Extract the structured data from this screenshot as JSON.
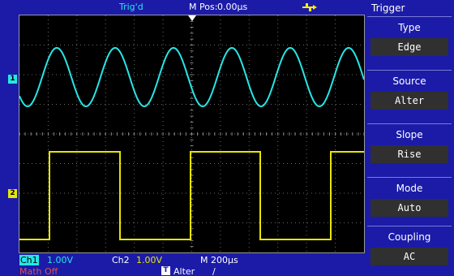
{
  "status": {
    "trigger_state": "Trig'd",
    "m_pos_label": "M Pos:",
    "m_pos_value": "0.00µs",
    "usb_icon": "usb-icon"
  },
  "channels": {
    "ch1": {
      "marker": "1",
      "label": "Ch1",
      "scale": "1.00V",
      "color": "#27e6e6"
    },
    "ch2": {
      "marker": "2",
      "label": "Ch2",
      "scale": "1.00V",
      "color": "#e6e600"
    }
  },
  "timebase": "M 200µs",
  "math": "Math Off",
  "trigger_readout": {
    "badge": "T",
    "source": "Alter",
    "slope_symbol": "∕"
  },
  "menu": {
    "title": "Trigger",
    "items": [
      {
        "label": "Type",
        "value": "Edge"
      },
      {
        "label": "Source",
        "value": "Alter"
      },
      {
        "label": "Slope",
        "value": "Rise"
      },
      {
        "label": "Mode",
        "value": "Auto"
      },
      {
        "label": "Coupling",
        "value": "AC"
      }
    ]
  }
}
